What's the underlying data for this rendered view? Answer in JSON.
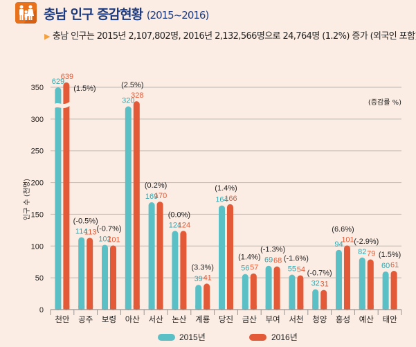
{
  "header": {
    "icon": "family-icon",
    "title": "충남 인구 증감현황",
    "title_years": "(2015~2016)",
    "subtitle": "충남 인구는 2015년 2,107,802명, 2016년 2,132,566명으로 24,764명 (1.2%) 증가 (외국인 포함)"
  },
  "colors": {
    "series_2015": "#5bbfc6",
    "series_2016": "#e25a37",
    "accent": "#e8721c",
    "title": "#1d3b80"
  },
  "chart_data": {
    "type": "bar",
    "title": "충남 인구 증감현황 (2015~2016)",
    "xlabel": "",
    "ylabel": "인구 수 (천명)",
    "note": "(증감률 %)",
    "ylim": [
      0,
      350
    ],
    "yticks": [
      0,
      50,
      100,
      150,
      200,
      250,
      300,
      350
    ],
    "grid": true,
    "axis_break": "천안",
    "legend_position": "bottom",
    "categories": [
      "천안",
      "공주",
      "보령",
      "아산",
      "서산",
      "논산",
      "계룡",
      "당진",
      "금산",
      "부여",
      "서천",
      "청양",
      "홍성",
      "예산",
      "태안"
    ],
    "series": [
      {
        "name": "2015년",
        "values": [
          629,
          114,
          102,
          320,
          169,
          124,
          39,
          164,
          56,
          69,
          55,
          32,
          94,
          82,
          60
        ]
      },
      {
        "name": "2016년",
        "values": [
          639,
          113,
          101,
          328,
          170,
          124,
          41,
          166,
          57,
          68,
          54,
          31,
          101,
          79,
          61
        ]
      }
    ],
    "change_labels": [
      "(1.5%)",
      "(-0.5%)",
      "(-0.7%)",
      "(2.5%)",
      "(0.2%)",
      "(0.0%)",
      "(3.3%)",
      "(1.4%)",
      "(1.4%)",
      "(-1.3%)",
      "(-1.6%)",
      "(-0.7%)",
      "(6.6%)",
      "(-2.9%)",
      "(1.5%)"
    ]
  }
}
